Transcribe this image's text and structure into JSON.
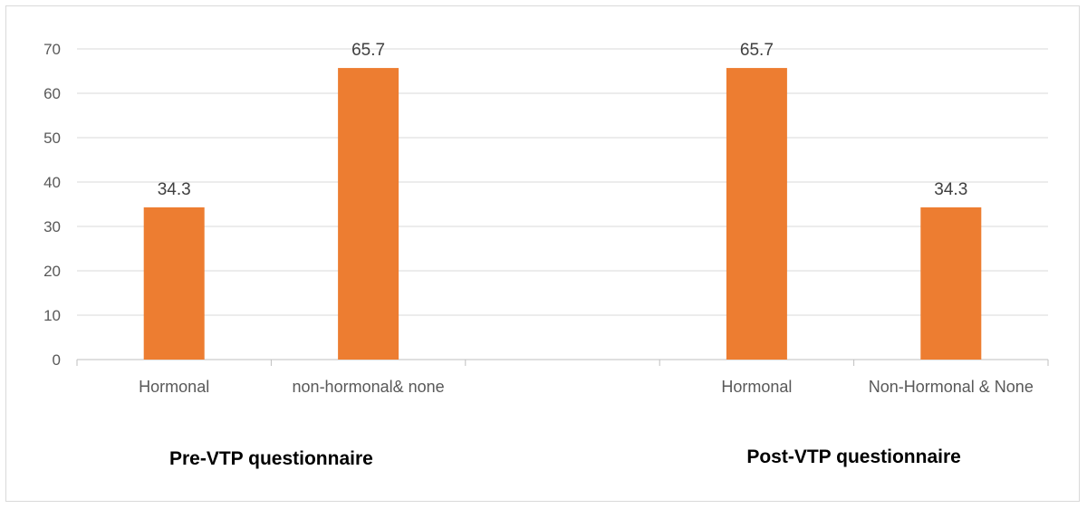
{
  "chart_data": {
    "type": "bar",
    "ylim": [
      0,
      70
    ],
    "yticks": [
      0,
      10,
      20,
      30,
      40,
      50,
      60,
      70
    ],
    "grid": true,
    "bar_color": "#ED7D31",
    "categories": [
      "Hormonal",
      "non-hormonal& none",
      "",
      "Hormonal",
      "Non-Hormonal & None"
    ],
    "values": [
      34.3,
      65.7,
      null,
      65.7,
      34.3
    ],
    "data_labels": [
      "34.3",
      "65.7",
      "",
      "65.7",
      "34.3"
    ],
    "groups": [
      {
        "label": "Pre-VTP questionnaire",
        "categories": [
          0,
          1
        ]
      },
      {
        "label": "Post-VTP questionnaire",
        "categories": [
          3,
          4
        ]
      }
    ]
  }
}
